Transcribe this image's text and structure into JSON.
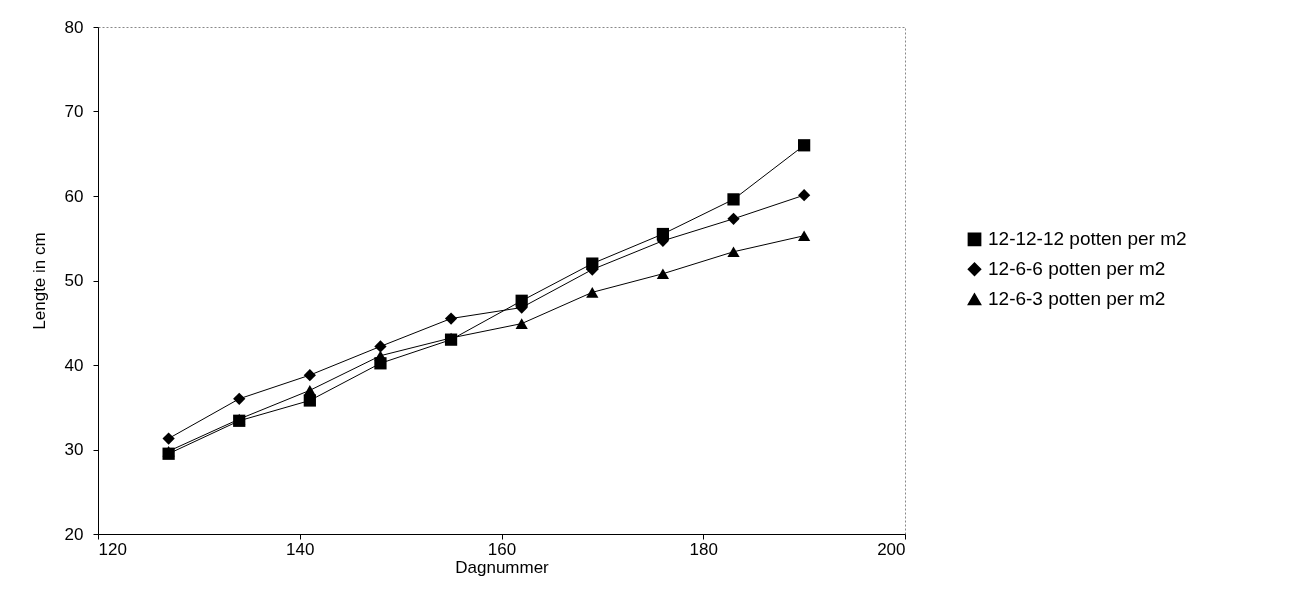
{
  "chart_data": {
    "type": "line",
    "xlabel": "Dagnummer",
    "ylabel": "Lengte in cm",
    "x": [
      127,
      134,
      141,
      148,
      155,
      162,
      169,
      176,
      183,
      190
    ],
    "series": [
      {
        "name": "12-12-12 potten per m2",
        "color": "#000000",
        "marker": "square",
        "values": [
          29.5,
          33.4,
          35.8,
          40.2,
          43.0,
          47.6,
          52.0,
          55.5,
          59.6,
          66.0
        ]
      },
      {
        "name": "12-6-6 potten per m2",
        "color": "#000000",
        "marker": "diamond",
        "values": [
          31.3,
          36.0,
          38.8,
          42.2,
          45.5,
          46.8,
          51.3,
          54.7,
          57.3,
          60.1
        ]
      },
      {
        "name": "12-6-3 potten per m2",
        "color": "#000000",
        "marker": "triangle",
        "values": [
          29.8,
          33.6,
          37.0,
          41.1,
          43.2,
          44.9,
          48.6,
          50.8,
          53.4,
          55.3
        ]
      }
    ],
    "xlim": [
      120,
      200
    ],
    "xticks": [
      120,
      140,
      160,
      180,
      200
    ],
    "ylim": [
      20,
      80
    ],
    "yticks": [
      20,
      30,
      40,
      50,
      60,
      70,
      80
    ],
    "legend": "right",
    "line_style": "solid"
  }
}
